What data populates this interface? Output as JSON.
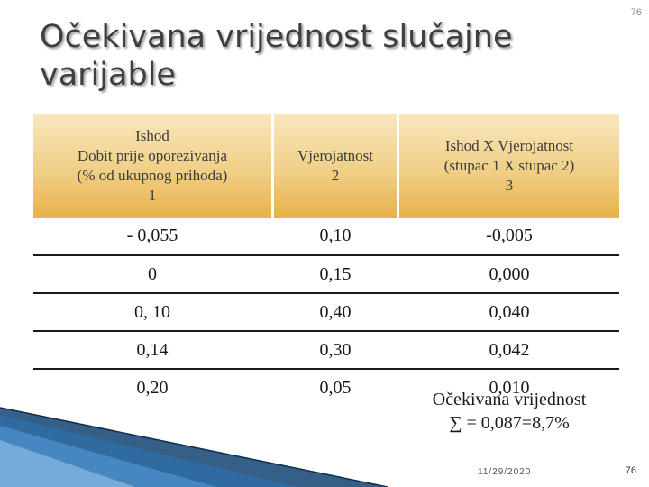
{
  "slide": {
    "title": "Očekivana vrijednost slučajne varijable",
    "corner_number": "76",
    "footer_date": "11/29/2020",
    "footer_page": "76"
  },
  "table": {
    "headers": [
      [
        "Ishod",
        "Dobit prije oporezivanja",
        "(% od ukupnog prihoda)",
        "1"
      ],
      [
        "Vjerojatnost",
        "2"
      ],
      [
        "Ishod  X  Vjerojatnost",
        "(stupac 1 X stupac  2)",
        "3"
      ]
    ],
    "rows": [
      [
        "- 0,055",
        "0,10",
        "-0,005"
      ],
      [
        "0",
        "0,15",
        "0,000"
      ],
      [
        "0, 10",
        "0,40",
        "0,040"
      ],
      [
        "0,14",
        "0,30",
        "0,042"
      ],
      [
        "0,20",
        "0,05",
        "0,010"
      ]
    ]
  },
  "summary": {
    "line1": "Očekivana vrijednost",
    "line2": "∑  = 0,087=8,7%"
  },
  "colors": {
    "header_gold": "#f0cf86",
    "header_gold_dark": "#e9b04a",
    "title_gray": "#3f3f3f",
    "deco_blue": "#1f4e79"
  }
}
